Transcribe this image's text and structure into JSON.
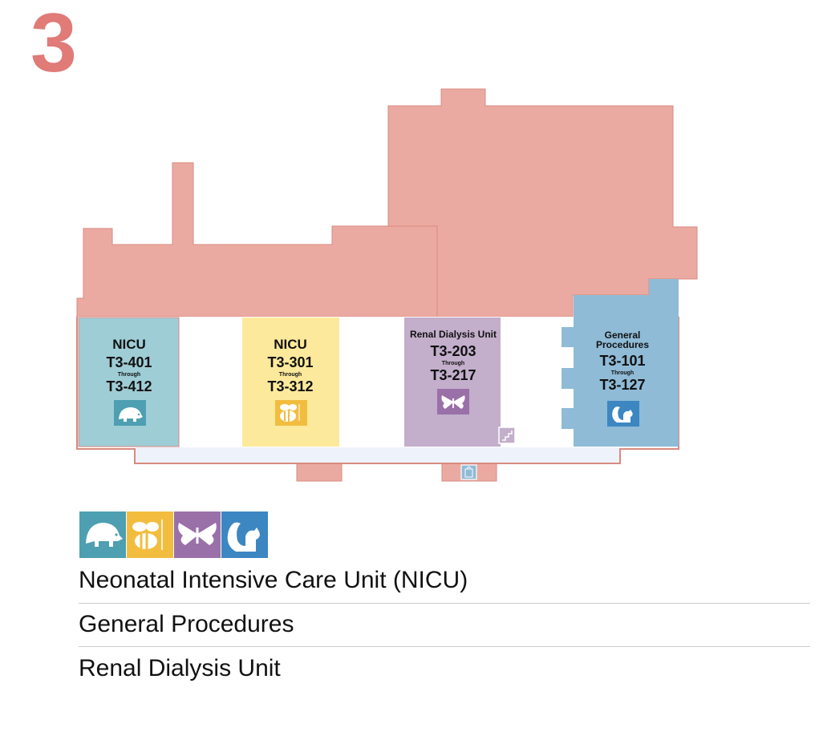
{
  "floor_number": "3",
  "colors": {
    "building": "#ebaaa1",
    "building_outline": "#d98a80",
    "corridor": "#eef2fa",
    "nicu_blue": "#9ecdd6",
    "nicu_yellow": "#fde99b",
    "renal": "#c3aecb",
    "general": "#8fbbd7",
    "icon_hedgehog": "#4d9fb1",
    "icon_bee": "#f2bd3f",
    "icon_butterfly": "#9a70a8",
    "icon_squirrel": "#3c86c2"
  },
  "units": [
    {
      "name": "NICU",
      "first": "T3-401",
      "through": "Through",
      "last": "T3-412",
      "icon": "hedgehog-icon"
    },
    {
      "name": "NICU",
      "first": "T3-301",
      "through": "Through",
      "last": "T3-312",
      "icon": "bee-icon"
    },
    {
      "name": "Renal Dialysis Unit",
      "first": "T3-203",
      "through": "Through",
      "last": "T3-217",
      "icon": "butterfly-icon"
    },
    {
      "name_line1": "General",
      "name_line2": "Procedures",
      "first": "T3-101",
      "through": "Through",
      "last": "T3-127",
      "icon": "squirrel-icon"
    }
  ],
  "map_icons": [
    "stairs-icon",
    "elevator-icon"
  ],
  "legend": {
    "icons": [
      "hedgehog-icon",
      "bee-icon",
      "butterfly-icon",
      "squirrel-icon"
    ],
    "items": [
      "Neonatal Intensive Care Unit (NICU)",
      "General Procedures",
      "Renal Dialysis Unit"
    ]
  }
}
